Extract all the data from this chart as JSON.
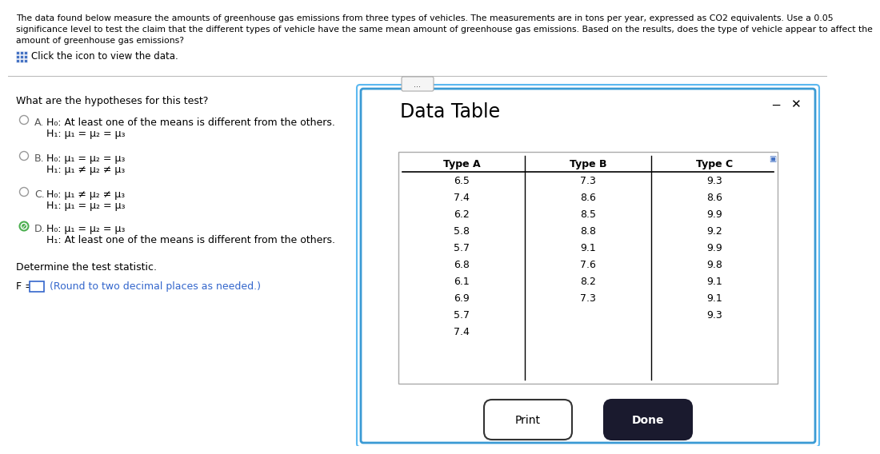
{
  "header_lines": [
    "The data found below measure the amounts of greenhouse gas emissions from three types of vehicles. The measurements are in tons per year, expressed as CO2 equivalents. Use a 0.05",
    "significance level to test the claim that the different types of vehicle have the same mean amount of greenhouse gas emissions. Based on the results, does the type of vehicle appear to affect the",
    "amount of greenhouse gas emissions?"
  ],
  "click_text": "Click the icon to view the data.",
  "question_text": "What are the hypotheses for this test?",
  "options": [
    {
      "label": "A.",
      "line1": "H₀: At least one of the means is different from the others.",
      "line2": "H₁: μ₁ = μ₂ = μ₃",
      "selected": false
    },
    {
      "label": "B.",
      "line1": "H₀: μ₁ = μ₂ = μ₃",
      "line2": "H₁: μ₁ ≠ μ₂ ≠ μ₃",
      "selected": false
    },
    {
      "label": "C.",
      "line1": "H₀: μ₁ ≠ μ₂ ≠ μ₃",
      "line2": "H₁: μ₁ = μ₂ = μ₃",
      "selected": false
    },
    {
      "label": "D.",
      "line1": "H₀: μ₁ = μ₂ = μ₃",
      "line2": "H₁: At least one of the means is different from the others.",
      "selected": true
    }
  ],
  "determine_text": "Determine the test statistic.",
  "f_label": "F =",
  "f_hint": "(Round to two decimal places as needed.)",
  "data_table_title": "Data Table",
  "col_headers": [
    "Type A",
    "Type B",
    "Type C"
  ],
  "type_a": [
    "6.5",
    "7.4",
    "6.2",
    "5.8",
    "5.7",
    "6.8",
    "6.1",
    "6.9",
    "5.7",
    "7.4"
  ],
  "type_b": [
    "7.3",
    "8.6",
    "8.5",
    "8.8",
    "9.1",
    "7.6",
    "8.2",
    "7.3",
    "",
    ""
  ],
  "type_c": [
    "9.3",
    "8.6",
    "9.9",
    "9.2",
    "9.9",
    "9.8",
    "9.1",
    "9.1",
    "9.3",
    ""
  ],
  "dialog_border": "#3a9ad4",
  "dialog_border2": "#5bb8f0",
  "table_border": "#aaaaaa",
  "button_done_bg": "#1a1a2e",
  "icon_color": "#4472c4",
  "selected_check_color": "#4caf50",
  "hint_color": "#3366cc",
  "separator_color": "#bbbbbb",
  "ellipsis_border": "#aaaaaa",
  "radio_border": "#999999",
  "resize_icon_color": "#4472c4"
}
